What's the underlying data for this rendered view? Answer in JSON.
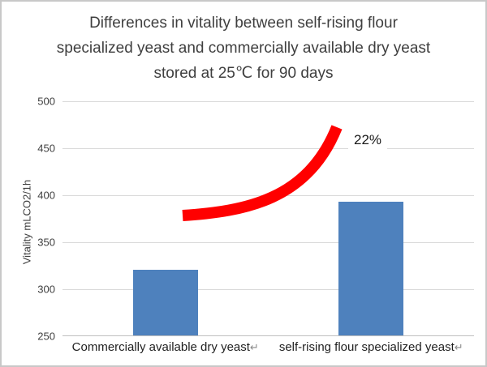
{
  "title": {
    "line1": "Differences in vitality between self-rising flour",
    "line2": "specialized yeast and commercially available dry yeast",
    "line3": "stored at 25℃ for 90 days"
  },
  "chart_data": {
    "type": "bar",
    "title": "Differences in vitality between self-rising flour specialized yeast and commercially available dry yeast stored at 25℃ for 90 days",
    "categories": [
      "Commercially available dry yeast",
      "self-rising flour specialized yeast"
    ],
    "values": [
      320,
      392
    ],
    "xlabel": "",
    "ylabel": "Vitality mLCO2/1h",
    "ylim": [
      250,
      500
    ],
    "yticks": [
      250,
      300,
      350,
      400,
      450,
      500
    ],
    "grid": true,
    "legend": "none",
    "bar_color": "#4E81BD",
    "annotation": {
      "text": "22%",
      "type": "curved-arrow",
      "color": "#FF0000"
    }
  },
  "category_labels": [
    {
      "text": "Commercially available dry yeast",
      "mark": "↵"
    },
    {
      "text": "self-rising flour specialized yeast",
      "mark": "↵"
    }
  ],
  "colors": {
    "bar_blue": "#4E81BD",
    "arrow_red": "#FF0000",
    "gridline": "#D9D9D9",
    "axis_line": "#BFBFBF",
    "title_text": "#3F3F3F",
    "tick_text": "#404040",
    "category_text": "#1F1F1F",
    "frame_border": "#C8C8C8"
  }
}
